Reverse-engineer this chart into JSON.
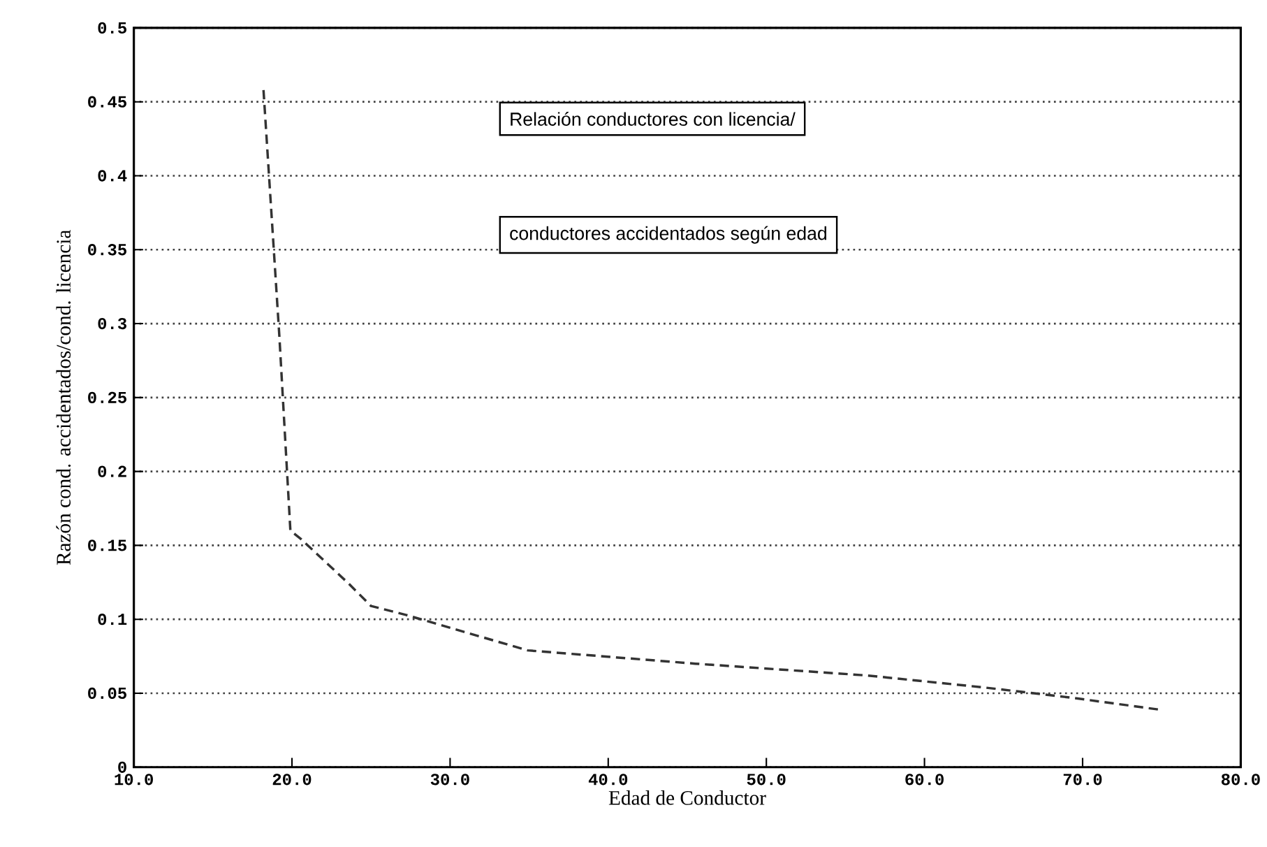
{
  "chart_data": {
    "type": "line",
    "xlabel": "Edad de Conductor",
    "ylabel": "Razón cond. accidentados/cond. licencia",
    "annotations": [
      "Relación conductores con licencia/",
      "conductores accidentados según edad"
    ],
    "x": [
      18.2,
      19.2,
      19.9,
      20.6,
      23.6,
      25.0,
      27.2,
      34.9,
      45.5,
      56.4,
      63.7,
      69.3,
      74.8
    ],
    "series": [
      {
        "color": "#333333",
        "values": [
          0.458,
          0.292,
          0.16,
          0.154,
          0.124,
          0.109,
          0.103,
          0.079,
          0.07,
          0.062,
          0.054,
          0.047,
          0.039
        ]
      }
    ],
    "xlim": [
      10,
      80
    ],
    "ylim": [
      0,
      0.5
    ],
    "xticks": [
      {
        "value": 10,
        "label": "10.0"
      },
      {
        "value": 20,
        "label": "20.0"
      },
      {
        "value": 30,
        "label": "30.0"
      },
      {
        "value": 40,
        "label": "40.0"
      },
      {
        "value": 50,
        "label": "50.0"
      },
      {
        "value": 60,
        "label": "60.0"
      },
      {
        "value": 70,
        "label": "70.0"
      },
      {
        "value": 80,
        "label": "80.0"
      }
    ],
    "yticks": [
      0,
      0.05,
      0.1,
      0.15,
      0.2,
      0.25,
      0.3,
      0.35,
      0.4,
      0.45,
      0.5
    ],
    "grid": "y",
    "line_style": "dashed",
    "marker": "none"
  }
}
